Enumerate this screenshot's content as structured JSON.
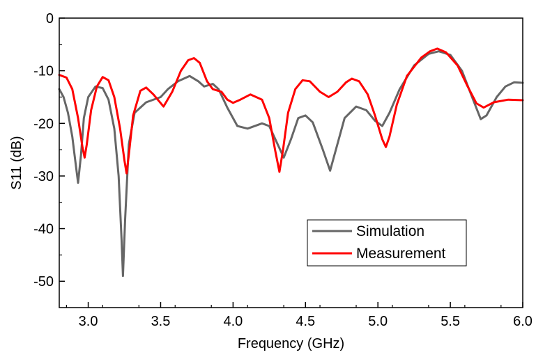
{
  "chart_data": {
    "type": "line",
    "title": "",
    "xlabel": "Frequency (GHz)",
    "ylabel": "S11 (dB)",
    "xlim": [
      2.8,
      6.0
    ],
    "ylim": [
      -55,
      0
    ],
    "xticks": [
      3.0,
      3.5,
      4.0,
      4.5,
      5.0,
      5.5,
      6.0
    ],
    "xtick_labels": [
      "3.0",
      "3.5",
      "4.0",
      "4.5",
      "5.0",
      "5.5",
      "6.0"
    ],
    "yticks": [
      0,
      -10,
      -20,
      -30,
      -40,
      -50
    ],
    "ytick_labels": [
      "0",
      "-10",
      "-20",
      "-30",
      "-40",
      "-50"
    ],
    "grid": false,
    "legend_position": "bottom-right",
    "series": [
      {
        "name": "Simulation",
        "color": "#666666",
        "points": [
          [
            2.8,
            -13.5
          ],
          [
            2.83,
            -15.0
          ],
          [
            2.86,
            -18.0
          ],
          [
            2.89,
            -22.5
          ],
          [
            2.91,
            -27.0
          ],
          [
            2.93,
            -31.3
          ],
          [
            2.95,
            -26.0
          ],
          [
            2.97,
            -19.0
          ],
          [
            3.0,
            -15.0
          ],
          [
            3.05,
            -13.0
          ],
          [
            3.1,
            -13.3
          ],
          [
            3.14,
            -15.5
          ],
          [
            3.18,
            -21.0
          ],
          [
            3.21,
            -30.0
          ],
          [
            3.23,
            -42.0
          ],
          [
            3.24,
            -49.0
          ],
          [
            3.255,
            -38.0
          ],
          [
            3.28,
            -24.0
          ],
          [
            3.32,
            -18.0
          ],
          [
            3.4,
            -16.0
          ],
          [
            3.5,
            -15.0
          ],
          [
            3.55,
            -13.5
          ],
          [
            3.62,
            -12.0
          ],
          [
            3.7,
            -11.0
          ],
          [
            3.76,
            -12.0
          ],
          [
            3.8,
            -13.0
          ],
          [
            3.86,
            -12.5
          ],
          [
            3.9,
            -13.5
          ],
          [
            3.96,
            -17.0
          ],
          [
            4.03,
            -20.5
          ],
          [
            4.1,
            -21.0
          ],
          [
            4.2,
            -20.0
          ],
          [
            4.25,
            -20.5
          ],
          [
            4.3,
            -23.5
          ],
          [
            4.35,
            -26.5
          ],
          [
            4.4,
            -23.0
          ],
          [
            4.45,
            -19.0
          ],
          [
            4.5,
            -18.5
          ],
          [
            4.55,
            -19.8
          ],
          [
            4.62,
            -25.0
          ],
          [
            4.67,
            -29.0
          ],
          [
            4.71,
            -25.0
          ],
          [
            4.77,
            -19.0
          ],
          [
            4.85,
            -16.8
          ],
          [
            4.92,
            -17.5
          ],
          [
            4.98,
            -19.5
          ],
          [
            5.03,
            -20.5
          ],
          [
            5.08,
            -18.0
          ],
          [
            5.15,
            -13.5
          ],
          [
            5.25,
            -9.0
          ],
          [
            5.35,
            -6.8
          ],
          [
            5.42,
            -6.3
          ],
          [
            5.5,
            -7.0
          ],
          [
            5.58,
            -10.0
          ],
          [
            5.65,
            -15.0
          ],
          [
            5.71,
            -19.2
          ],
          [
            5.75,
            -18.5
          ],
          [
            5.82,
            -15.0
          ],
          [
            5.88,
            -13.0
          ],
          [
            5.94,
            -12.2
          ],
          [
            6.0,
            -12.3
          ]
        ]
      },
      {
        "name": "Measurement",
        "color": "#ff0000",
        "points": [
          [
            2.8,
            -10.8
          ],
          [
            2.85,
            -11.3
          ],
          [
            2.89,
            -13.5
          ],
          [
            2.93,
            -19.0
          ],
          [
            2.96,
            -24.5
          ],
          [
            2.975,
            -26.5
          ],
          [
            2.99,
            -24.0
          ],
          [
            3.02,
            -17.5
          ],
          [
            3.06,
            -13.0
          ],
          [
            3.1,
            -11.2
          ],
          [
            3.14,
            -11.8
          ],
          [
            3.18,
            -15.0
          ],
          [
            3.22,
            -21.0
          ],
          [
            3.25,
            -27.0
          ],
          [
            3.265,
            -29.5
          ],
          [
            3.28,
            -26.0
          ],
          [
            3.31,
            -18.5
          ],
          [
            3.36,
            -13.8
          ],
          [
            3.4,
            -13.2
          ],
          [
            3.45,
            -14.5
          ],
          [
            3.52,
            -16.8
          ],
          [
            3.58,
            -14.0
          ],
          [
            3.64,
            -10.0
          ],
          [
            3.69,
            -8.0
          ],
          [
            3.73,
            -7.6
          ],
          [
            3.77,
            -8.5
          ],
          [
            3.82,
            -12.0
          ],
          [
            3.86,
            -13.5
          ],
          [
            3.92,
            -14.0
          ],
          [
            3.96,
            -15.5
          ],
          [
            4.0,
            -16.1
          ],
          [
            4.05,
            -15.5
          ],
          [
            4.12,
            -14.5
          ],
          [
            4.2,
            -15.5
          ],
          [
            4.25,
            -19.0
          ],
          [
            4.29,
            -25.0
          ],
          [
            4.32,
            -29.2
          ],
          [
            4.345,
            -25.0
          ],
          [
            4.38,
            -18.0
          ],
          [
            4.43,
            -13.5
          ],
          [
            4.48,
            -11.8
          ],
          [
            4.53,
            -12.0
          ],
          [
            4.6,
            -14.0
          ],
          [
            4.66,
            -15.0
          ],
          [
            4.72,
            -14.0
          ],
          [
            4.78,
            -12.2
          ],
          [
            4.82,
            -11.5
          ],
          [
            4.87,
            -12.0
          ],
          [
            4.93,
            -14.5
          ],
          [
            4.98,
            -18.5
          ],
          [
            5.03,
            -23.0
          ],
          [
            5.055,
            -24.5
          ],
          [
            5.08,
            -22.5
          ],
          [
            5.13,
            -16.5
          ],
          [
            5.2,
            -11.0
          ],
          [
            5.3,
            -7.5
          ],
          [
            5.36,
            -6.3
          ],
          [
            5.41,
            -5.8
          ],
          [
            5.47,
            -6.5
          ],
          [
            5.55,
            -9.0
          ],
          [
            5.62,
            -13.0
          ],
          [
            5.68,
            -16.2
          ],
          [
            5.73,
            -17.0
          ],
          [
            5.8,
            -16.0
          ],
          [
            5.9,
            -15.5
          ],
          [
            6.0,
            -15.6
          ]
        ]
      }
    ]
  }
}
